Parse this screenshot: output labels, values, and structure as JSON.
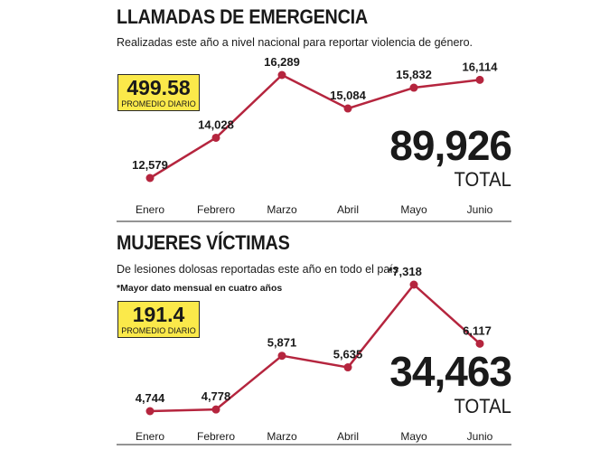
{
  "chart_data": [
    {
      "type": "line",
      "title": "LLAMADAS DE EMERGENCIA",
      "subtitle": "Realizadas este año a nivel nacional para reportar violencia de género.",
      "categories": [
        "Enero",
        "Febrero",
        "Marzo",
        "Abril",
        "Mayo",
        "Junio"
      ],
      "values": [
        12579,
        14028,
        16289,
        15084,
        15832,
        16114
      ],
      "value_labels": [
        "12,579",
        "14,028",
        "16,289",
        "15,084",
        "15,832",
        "16,114"
      ],
      "ylim": [
        12000,
        16600
      ],
      "daily_average": "499.58",
      "daily_average_label": "PROMEDIO DIARIO",
      "total": "89,926",
      "total_label": "TOTAL",
      "line_color": "#b5253e"
    },
    {
      "type": "line",
      "title": "MUJERES VÍCTIMAS",
      "subtitle": "De lesiones dolosas reportadas este año en todo el país",
      "footnote": "*Mayor dato mensual en cuatro años",
      "categories": [
        "Enero",
        "Febrero",
        "Marzo",
        "Abril",
        "Mayo",
        "Junio"
      ],
      "values": [
        4744,
        4778,
        5871,
        5635,
        7318,
        6117
      ],
      "value_labels": [
        "4,744",
        "4,778",
        "5,871",
        "5,635",
        "*7,318",
        "6,117"
      ],
      "ylim": [
        4500,
        7500
      ],
      "daily_average": "191.4",
      "daily_average_label": "PROMEDIO DIARIO",
      "total": "34,463",
      "total_label": "TOTAL",
      "line_color": "#b5253e"
    }
  ]
}
